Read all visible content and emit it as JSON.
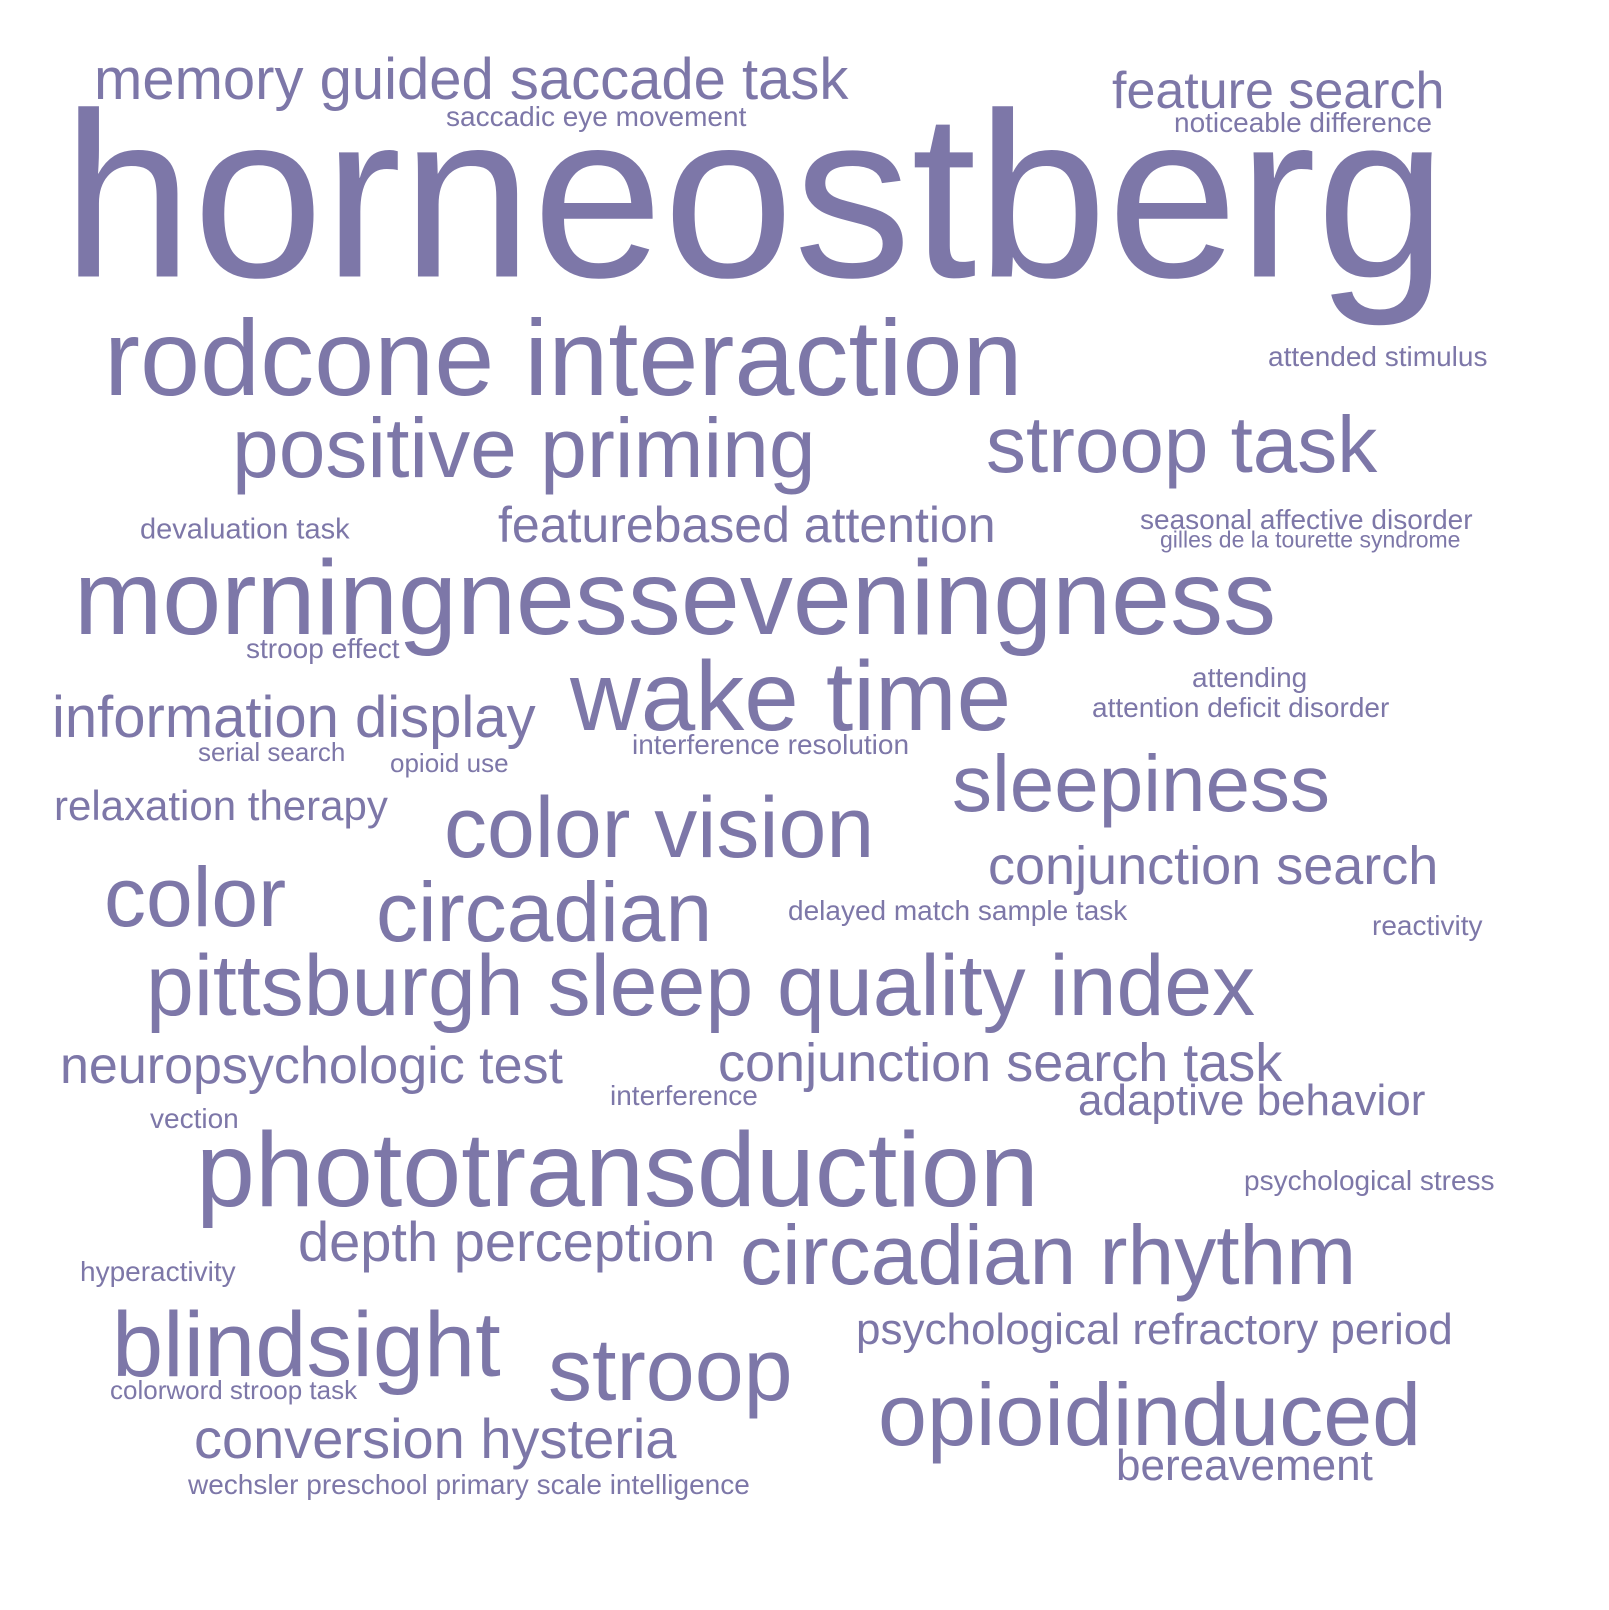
{
  "word_color": "#7d77a8",
  "background_color": "#ffffff",
  "words": [
    "horneostberg",
    "rodcone interaction",
    "morningnesseveningness",
    "phototransduction",
    "pittsburgh sleep quality index",
    "wake time",
    "positive priming",
    "stroop task",
    "color vision",
    "circadian rhythm",
    "opioidinduced",
    "blindsight",
    "stroop",
    "circadian",
    "color",
    "sleepiness",
    "memory guided saccade task",
    "conversion hysteria",
    "depth perception",
    "information display",
    "featurebased attention",
    "conjunction search",
    "conjunction search task",
    "neuropsychologic test",
    "feature search",
    "psychological refractory period",
    "relaxation therapy",
    "adaptive behavior",
    "bereavement",
    "saccadic eye movement",
    "noticeable difference",
    "attended stimulus",
    "devaluation task",
    "seasonal affective disorder",
    "gilles de la tourette syndrome",
    "stroop effect",
    "attending",
    "attention deficit disorder",
    "serial search",
    "opioid use",
    "interference resolution",
    "delayed match sample task",
    "reactivity",
    "interference",
    "vection",
    "psychological stress",
    "hyperactivity",
    "colorword stroop task",
    "wechsler preschool primary scale intelligence"
  ]
}
